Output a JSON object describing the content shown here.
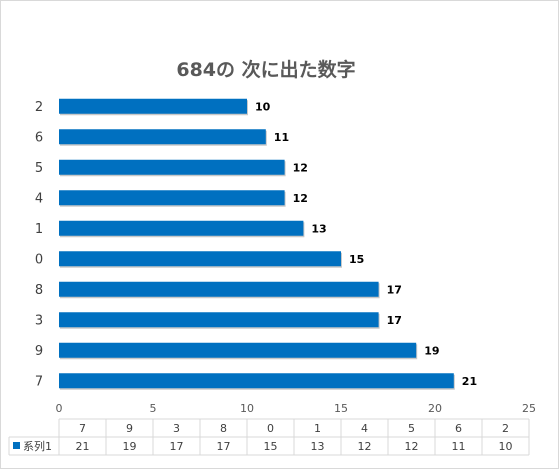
{
  "chart_data": {
    "type": "bar",
    "orientation": "horizontal",
    "title": "684の 次に出た数字",
    "categories": [
      "2",
      "6",
      "5",
      "4",
      "1",
      "0",
      "8",
      "3",
      "9",
      "7"
    ],
    "series": [
      {
        "name": "系列1",
        "values": [
          10,
          11,
          12,
          12,
          13,
          15,
          17,
          17,
          19,
          21
        ],
        "color": "#0070c0"
      }
    ],
    "xlim": [
      0,
      25
    ],
    "x_ticks": [
      0,
      5,
      10,
      15,
      20,
      25
    ],
    "data_labels": true,
    "grid": false,
    "legend": "data-table",
    "data_table": {
      "header": [
        "7",
        "9",
        "3",
        "8",
        "0",
        "1",
        "4",
        "5",
        "6",
        "2"
      ],
      "row_label": "系列1",
      "values": [
        21,
        19,
        17,
        17,
        15,
        13,
        12,
        12,
        11,
        10
      ]
    }
  }
}
